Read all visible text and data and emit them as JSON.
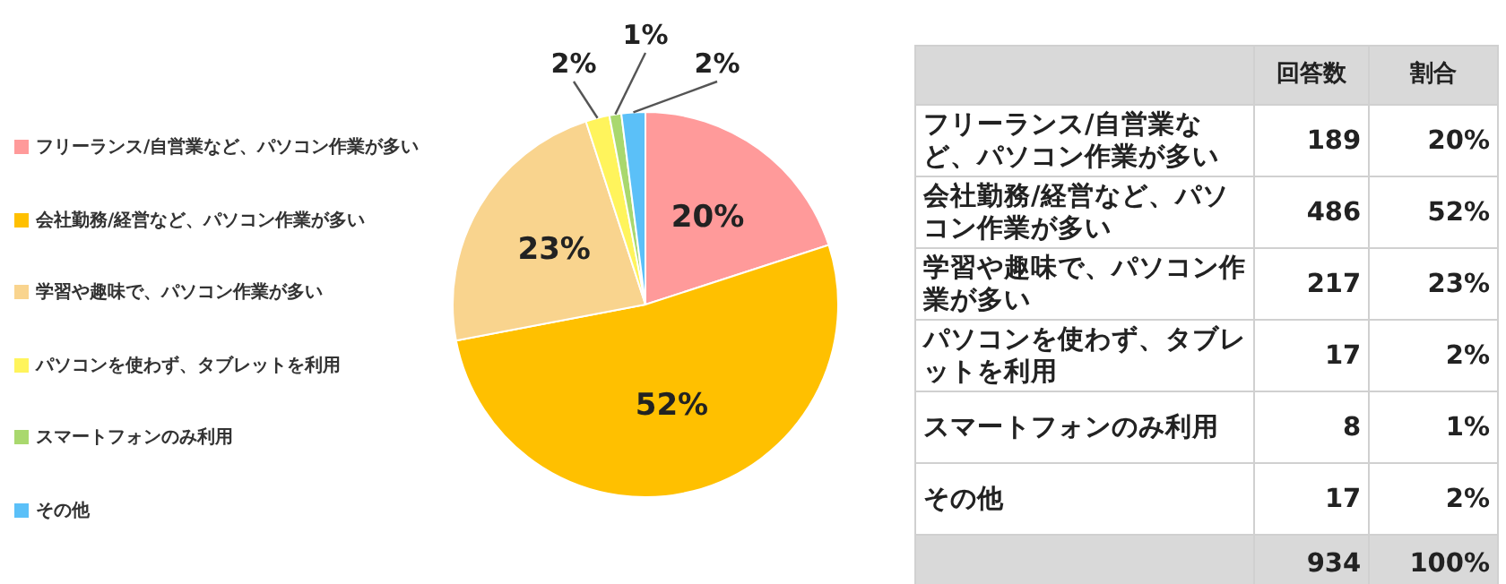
{
  "chart_data": {
    "type": "pie",
    "categories": [
      "フリーランス/自営業など、パソコン作業が多い",
      "会社勤務/経営など、パソコン作業が多い",
      "学習や趣味で、パソコン作業が多い",
      "パソコンを使わず、タブレットを利用",
      "スマートフォンのみ利用",
      "その他"
    ],
    "values": [
      20,
      52,
      23,
      2,
      1,
      2
    ],
    "value_labels": [
      "20%",
      "52%",
      "23%",
      "2%",
      "1%",
      "2%"
    ],
    "colors": [
      "#ff9a9a",
      "#ffc000",
      "#f9d48e",
      "#fff45c",
      "#a9d86e",
      "#5bc0f8"
    ],
    "legend": "left",
    "annotations": [
      "回答数",
      "割合",
      "189",
      "486",
      "217",
      "17",
      "8",
      "17",
      "934",
      "100%"
    ]
  }
}
